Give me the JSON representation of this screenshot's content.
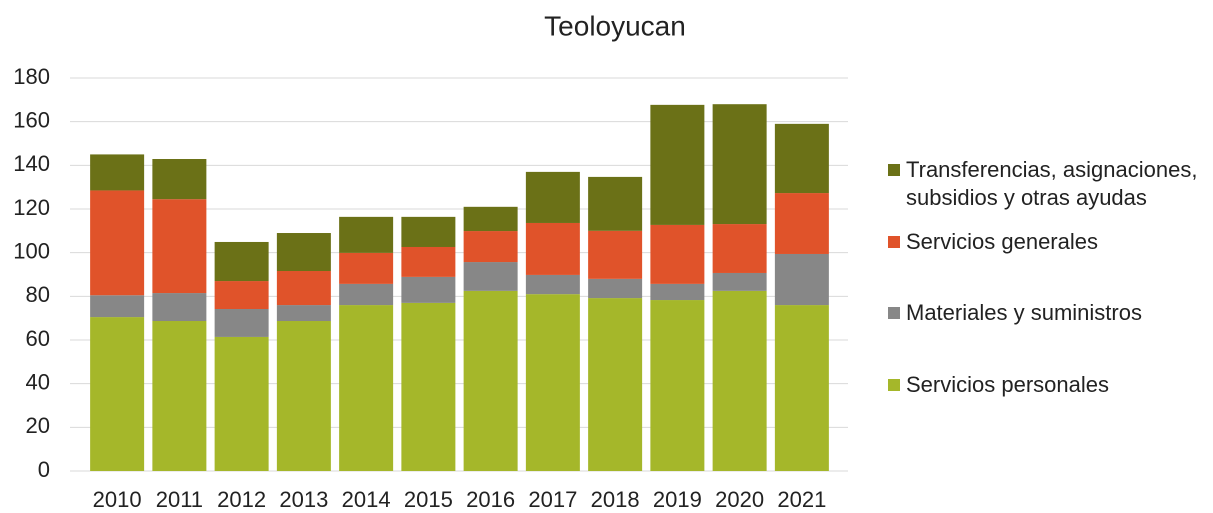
{
  "chart_data": {
    "type": "stacked_bar",
    "title": "Teoloyucan",
    "categories": [
      "2010",
      "2011",
      "2012",
      "2013",
      "2014",
      "2015",
      "2016",
      "2017",
      "2018",
      "2019",
      "2020",
      "2021"
    ],
    "series": [
      {
        "name": "Servicios personales",
        "color": "#a5b72a",
        "values": [
          70.5,
          68.7,
          61.4,
          68.7,
          76,
          77,
          82.5,
          81,
          79.2,
          78.3,
          82.5,
          76
        ]
      },
      {
        "name": "Materiales y suministros",
        "color": "#878787",
        "values": [
          10,
          12.8,
          12.8,
          7.3,
          9.7,
          11.9,
          13.2,
          8.8,
          8.8,
          7.4,
          8.2,
          23.4
        ]
      },
      {
        "name": "Servicios generales",
        "color": "#e0532a",
        "values": [
          48,
          43,
          12.8,
          15.6,
          14.2,
          13.7,
          14.2,
          23.8,
          22,
          27,
          22.4,
          27.9
        ]
      },
      {
        "name": "Transferencias, asignaciones, subsidios y otras ayudas",
        "color": "#6b7117",
        "values": [
          16.5,
          18.4,
          17.9,
          17.4,
          16.5,
          13.8,
          11.1,
          23.4,
          24.7,
          55,
          54.9,
          31.7
        ]
      }
    ],
    "ylim": [
      0,
      180
    ],
    "yticks": [
      0,
      20,
      40,
      60,
      80,
      100,
      120,
      140,
      160,
      180
    ],
    "grid": true,
    "legend": "right"
  }
}
